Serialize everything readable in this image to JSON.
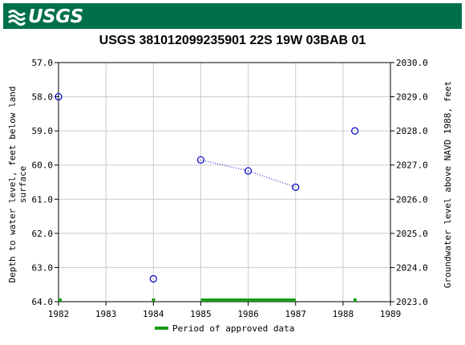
{
  "header": {
    "logo_text": "USGS"
  },
  "chart_data": {
    "type": "scatter",
    "title": "USGS 381012099235901 22S 19W 03BAB 01",
    "ylabel_left": "Depth to water level, feet below land surface",
    "ylabel_left_lines": [
      "Depth to water level, feet below land",
      "surface"
    ],
    "ylabel_right": "Groundwater level above NAVD 1988, feet",
    "xlim": [
      1982,
      1989
    ],
    "ylim_left": [
      57.0,
      64.0
    ],
    "ylim_right": [
      2023.0,
      2030.0
    ],
    "x_ticks": [
      "1982",
      "1983",
      "1984",
      "1985",
      "1986",
      "1987",
      "1988",
      "1989"
    ],
    "y_left_ticks": [
      "57.0",
      "58.0",
      "59.0",
      "60.0",
      "61.0",
      "62.0",
      "63.0",
      "64.0"
    ],
    "y_right_ticks": [
      "2030.0",
      "2029.0",
      "2028.0",
      "2027.0",
      "2026.0",
      "2025.0",
      "2024.0",
      "2023.0"
    ],
    "grid": true,
    "points": [
      {
        "x": 1982.0,
        "y": 58.0
      },
      {
        "x": 1984.0,
        "y": 63.33
      },
      {
        "x": 1985.0,
        "y": 59.85
      },
      {
        "x": 1986.0,
        "y": 60.17
      },
      {
        "x": 1987.0,
        "y": 60.65
      },
      {
        "x": 1988.25,
        "y": 59.0
      }
    ],
    "connected_segments": [
      [
        2,
        3,
        4
      ]
    ],
    "approved_periods": [
      [
        1982.0,
        1982.05
      ],
      [
        1983.97,
        1984.03
      ],
      [
        1985.0,
        1987.0
      ],
      [
        1988.22,
        1988.28
      ]
    ],
    "legend": {
      "label": "Period of approved data",
      "placement": "bottom-center"
    },
    "colors": {
      "points": "#0000cc",
      "approved": "#1a9c1a",
      "grid": "#cccccc",
      "banner": "#00704a"
    }
  }
}
